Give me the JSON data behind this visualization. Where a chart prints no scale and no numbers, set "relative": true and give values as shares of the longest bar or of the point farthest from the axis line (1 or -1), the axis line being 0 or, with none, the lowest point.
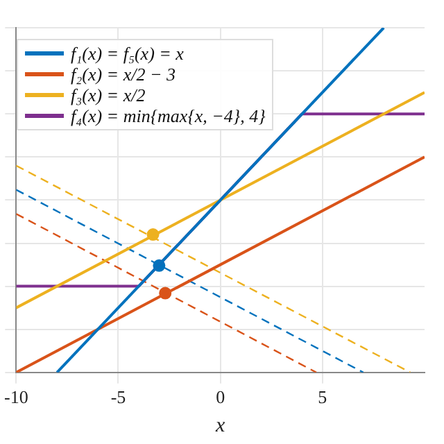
{
  "chart_data": {
    "type": "line",
    "relative": true,
    "xlabel": "x",
    "xlim": [
      -10,
      10
    ],
    "xticks": [
      -10,
      -5,
      0,
      5
    ],
    "grid": true,
    "legend": "top left",
    "tick_labels": "x",
    "marker": "none",
    "series": [
      {
        "name": "f₁(x) = f₅(x) = x",
        "color": "#0072bd",
        "x": [
          -8,
          8
        ],
        "values": [
          0,
          1
        ]
      },
      {
        "name": "f₂(x) = x/2 − 3",
        "color": "#d95319",
        "x": [
          -10,
          10
        ],
        "values": [
          0,
          0.625
        ]
      },
      {
        "name": "f₃(x) = x/2",
        "color": "#edb120",
        "x": [
          -10,
          10
        ],
        "values": [
          0.1875,
          0.8125
        ]
      },
      {
        "name": "f₄(x) = min{max{x, −4}, 4}",
        "color": "#7e2f8e",
        "x": [
          -10,
          -4,
          4,
          10
        ],
        "values": [
          0.25,
          0.25,
          0.75,
          0.75
        ]
      },
      {
        "color": "#0072bd",
        "line_style": "dashed",
        "x": [
          -10,
          7
        ],
        "values": [
          0.53,
          0
        ]
      },
      {
        "color": "#d95319",
        "line_style": "dashed",
        "x": [
          -10,
          4.7
        ],
        "values": [
          0.46,
          0
        ]
      },
      {
        "color": "#edb120",
        "line_style": "dashed",
        "x": [
          -10,
          9.3
        ],
        "values": [
          0.6,
          0
        ]
      },
      {
        "type": "scatter",
        "marker": "circle",
        "color": "#0072bd",
        "x": [
          -3
        ],
        "values": [
          0.31
        ]
      },
      {
        "type": "scatter",
        "marker": "circle",
        "color": "#d95319",
        "x": [
          -2.7
        ],
        "values": [
          0.23
        ]
      },
      {
        "type": "scatter",
        "marker": "circle",
        "color": "#edb120",
        "x": [
          -3.3
        ],
        "values": [
          0.4
        ]
      }
    ]
  }
}
